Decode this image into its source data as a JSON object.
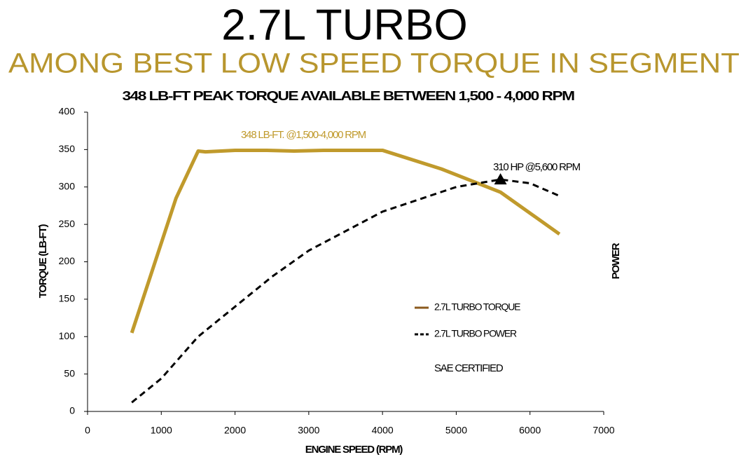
{
  "chart_data": {
    "type": "line",
    "title": "2.7L TURBO",
    "subtitle": "AMONG BEST LOW SPEED TORQUE IN SEGMENT",
    "chart_title": "348 LB-FT PEAK TORQUE AVAILABLE BETWEEN 1,500 - 4,000 RPM",
    "x_label": "ENGINE SPEED (RPM)",
    "y_label": "TORQUE (LB-FT)",
    "y2_label": "POWER",
    "xlim": [
      0,
      7000
    ],
    "xticks": [
      0,
      1000,
      2000,
      3000,
      4000,
      5000,
      6000,
      7000
    ],
    "ylim": [
      0,
      400
    ],
    "yticks": [
      0,
      50,
      100,
      150,
      200,
      250,
      300,
      350,
      400
    ],
    "series": [
      {
        "name": "2.7L TURBO TORQUE",
        "color": "#c09a2c",
        "legend_color": "#8b5a1e",
        "line_style": "solid",
        "x": [
          600,
          1200,
          1500,
          1600,
          2000,
          2400,
          2800,
          3200,
          4000,
          4800,
          5600,
          6400
        ],
        "values": [
          105,
          285,
          348,
          347,
          349,
          349,
          348,
          349,
          349,
          324,
          293,
          237
        ]
      },
      {
        "name": "2.7L TURBO POWER",
        "color": "#000000",
        "legend_color": "#000000",
        "line_style": "dashed",
        "x": [
          600,
          1000,
          1500,
          2000,
          2500,
          3000,
          4000,
          5000,
          5600,
          6000,
          6400
        ],
        "values": [
          12,
          44,
          100,
          140,
          180,
          215,
          267,
          300,
          310,
          305,
          288
        ]
      }
    ],
    "annotations": [
      "348 LB-FT. @1,500-4,000 RPM",
      "310 HP @5,600 RPM"
    ],
    "note": "SAE CERTIFIED"
  }
}
